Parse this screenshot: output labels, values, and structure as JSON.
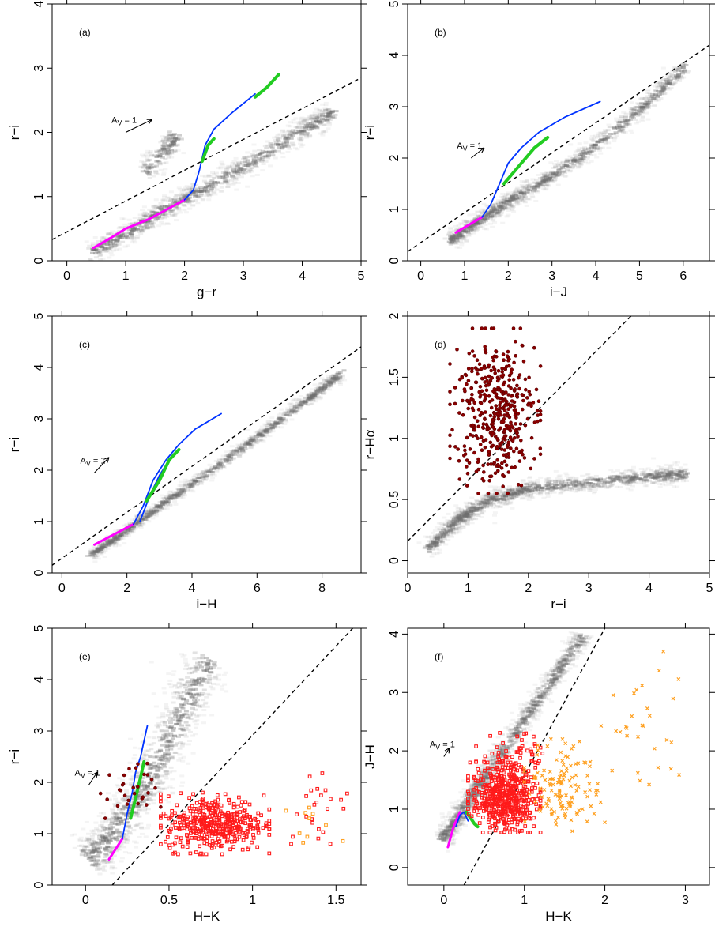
{
  "figure": {
    "panels_note": "",
    "colors": {
      "background_cloud": "#6e6e6e",
      "dashed_line": "#000000",
      "blue_track": "#0033ff",
      "green_track": "#22cc22",
      "magenta_track": "#ff00ff",
      "dark_red": "#8b0000",
      "red": "#ff1a1a",
      "orange": "#ffa020"
    }
  },
  "chart_data": [
    {
      "id": "a",
      "type": "scatter",
      "panel_label": "(a)",
      "xlabel": "g−r",
      "ylabel": "r−i",
      "xlim": [
        -0.25,
        5.0
      ],
      "ylim": [
        0,
        4
      ],
      "xticks": [
        "0",
        "1",
        "2",
        "3",
        "4",
        "5"
      ],
      "yticks": [
        "0",
        "1",
        "2",
        "3",
        "4"
      ],
      "xtick_values": [
        0,
        1,
        2,
        3,
        4,
        5
      ],
      "ytick_values": [
        0,
        1,
        2,
        3,
        4
      ],
      "reddening_label": "A_V = 1",
      "reddening_arrow": {
        "from": [
          1.0,
          2.0
        ],
        "to": [
          1.45,
          2.2
        ]
      },
      "dashed_line": {
        "x": [
          -0.25,
          5.0
        ],
        "y": [
          0.33,
          2.85
        ]
      },
      "cloud": [
        {
          "path": [
            [
              0.4,
              0.15
            ],
            [
              1.0,
              0.45
            ],
            [
              1.6,
              0.8
            ],
            [
              2.2,
              1.1
            ],
            [
              3.0,
              1.5
            ],
            [
              3.8,
              1.95
            ],
            [
              4.5,
              2.35
            ]
          ],
          "width": 0.28,
          "n": 900
        },
        {
          "path": [
            [
              1.3,
              1.4
            ],
            [
              1.6,
              1.7
            ],
            [
              1.8,
              1.95
            ]
          ],
          "width": 0.3,
          "n": 160
        }
      ],
      "tracks": [
        {
          "color": "magenta",
          "x": [
            0.45,
            0.7,
            1.0,
            1.4,
            1.8,
            2.0
          ],
          "y": [
            0.2,
            0.33,
            0.5,
            0.65,
            0.85,
            0.95
          ]
        },
        {
          "color": "blue",
          "x": [
            2.0,
            2.15,
            2.25,
            2.35,
            2.5,
            2.8,
            3.2
          ],
          "y": [
            0.95,
            1.1,
            1.4,
            1.8,
            2.05,
            2.3,
            2.6
          ]
        },
        {
          "color": "green",
          "x": [
            2.3,
            2.4,
            2.5
          ],
          "y": [
            1.55,
            1.8,
            1.9
          ]
        },
        {
          "color": "green",
          "x": [
            3.2,
            3.4,
            3.6
          ],
          "y": [
            2.55,
            2.7,
            2.9
          ]
        }
      ],
      "points": []
    },
    {
      "id": "b",
      "type": "scatter",
      "panel_label": "(b)",
      "xlabel": "i−J",
      "ylabel": "r−i",
      "xlim": [
        -0.3,
        6.6
      ],
      "ylim": [
        0,
        5
      ],
      "xticks": [
        "0",
        "1",
        "2",
        "3",
        "4",
        "5",
        "6"
      ],
      "yticks": [
        "0",
        "1",
        "2",
        "3",
        "4",
        "5"
      ],
      "xtick_values": [
        0,
        1,
        2,
        3,
        4,
        5,
        6
      ],
      "ytick_values": [
        0,
        1,
        2,
        3,
        4,
        5
      ],
      "reddening_label": "A_V = 1",
      "reddening_arrow": {
        "from": [
          1.15,
          2.0
        ],
        "to": [
          1.45,
          2.2
        ]
      },
      "dashed_line": {
        "x": [
          -0.3,
          6.6
        ],
        "y": [
          0.18,
          4.2
        ]
      },
      "cloud": [
        {
          "path": [
            [
              0.6,
              0.4
            ],
            [
              1.2,
              0.75
            ],
            [
              2.0,
              1.2
            ],
            [
              3.0,
              1.7
            ],
            [
              4.0,
              2.3
            ],
            [
              5.0,
              3.0
            ],
            [
              6.0,
              3.8
            ]
          ],
          "width": 0.28,
          "n": 1000
        }
      ],
      "tracks": [
        {
          "color": "magenta",
          "x": [
            0.8,
            1.1,
            1.4
          ],
          "y": [
            0.55,
            0.7,
            0.85
          ]
        },
        {
          "color": "blue",
          "x": [
            1.4,
            1.6,
            1.8,
            2.0,
            2.3,
            2.7,
            3.3,
            4.1
          ],
          "y": [
            0.85,
            1.1,
            1.5,
            1.9,
            2.2,
            2.5,
            2.8,
            3.1
          ]
        },
        {
          "color": "green",
          "x": [
            1.9,
            2.3,
            2.6,
            2.9
          ],
          "y": [
            1.5,
            1.9,
            2.2,
            2.4
          ]
        }
      ],
      "points": []
    },
    {
      "id": "c",
      "type": "scatter",
      "panel_label": "(c)",
      "xlabel": "i−H",
      "ylabel": "r−i",
      "xlim": [
        -0.3,
        9.2
      ],
      "ylim": [
        0,
        5
      ],
      "xticks": [
        "0",
        "2",
        "4",
        "6",
        "8"
      ],
      "yticks": [
        "0",
        "1",
        "2",
        "3",
        "4",
        "5"
      ],
      "xtick_values": [
        0,
        2,
        4,
        6,
        8
      ],
      "ytick_values": [
        0,
        1,
        2,
        3,
        4,
        5
      ],
      "reddening_label": "A_V = 1",
      "reddening_arrow": {
        "from": [
          1.0,
          1.95
        ],
        "to": [
          1.45,
          2.25
        ]
      },
      "dashed_line": {
        "x": [
          -0.3,
          9.2
        ],
        "y": [
          0.15,
          4.4
        ]
      },
      "cloud": [
        {
          "path": [
            [
              0.8,
              0.35
            ],
            [
              1.8,
              0.8
            ],
            [
              3.0,
              1.35
            ],
            [
              4.5,
              2.0
            ],
            [
              6.0,
              2.7
            ],
            [
              7.5,
              3.4
            ],
            [
              8.5,
              3.9
            ]
          ],
          "width": 0.26,
          "n": 1000
        }
      ],
      "tracks": [
        {
          "color": "magenta",
          "x": [
            1.0,
            1.6,
            2.2
          ],
          "y": [
            0.55,
            0.75,
            0.95
          ]
        },
        {
          "color": "blue",
          "x": [
            2.2,
            2.5,
            2.8,
            3.2,
            3.6,
            4.1,
            4.9
          ],
          "y": [
            0.95,
            1.3,
            1.8,
            2.2,
            2.5,
            2.8,
            3.1
          ]
        },
        {
          "color": "blue",
          "x": [
            2.4,
            2.7,
            3.0,
            3.4,
            3.6
          ],
          "y": [
            1.0,
            1.5,
            1.9,
            2.3,
            2.4
          ]
        },
        {
          "color": "green",
          "x": [
            2.6,
            3.0,
            3.3,
            3.6
          ],
          "y": [
            1.4,
            1.8,
            2.2,
            2.4
          ]
        }
      ],
      "points": []
    },
    {
      "id": "d",
      "type": "scatter",
      "panel_label": "(d)",
      "xlabel": "r−i",
      "ylabel": "r−Hα",
      "xlim": [
        0,
        5
      ],
      "ylim": [
        -0.1,
        2.0
      ],
      "xticks": [
        "0",
        "1",
        "2",
        "3",
        "4",
        "5"
      ],
      "yticks": [
        "0",
        "0.5",
        "1",
        "1.5",
        "2"
      ],
      "xtick_values": [
        0,
        1,
        2,
        3,
        4,
        5
      ],
      "ytick_values": [
        0,
        0.5,
        1,
        1.5,
        2
      ],
      "dashed_line": {
        "x": [
          0,
          3.7
        ],
        "y": [
          0.16,
          2.0
        ]
      },
      "cloud": [
        {
          "path": [
            [
              0.3,
              0.1
            ],
            [
              0.8,
              0.35
            ],
            [
              1.3,
              0.5
            ],
            [
              2.0,
              0.6
            ],
            [
              3.0,
              0.65
            ],
            [
              4.0,
              0.7
            ],
            [
              4.6,
              0.72
            ]
          ],
          "width": 0.22,
          "n": 1100
        }
      ],
      "tracks": [],
      "points": [
        {
          "color": "dark_red",
          "shape": "circle",
          "n": 420,
          "x_range": [
            0.7,
            2.2
          ],
          "y_range": [
            0.55,
            1.9
          ]
        }
      ]
    },
    {
      "id": "e",
      "type": "scatter",
      "panel_label": "(e)",
      "xlabel": "H−K",
      "ylabel": "r−i",
      "xlim": [
        -0.2,
        1.65
      ],
      "ylim": [
        0,
        5
      ],
      "xticks": [
        "0",
        "0.5",
        "1",
        "1.5"
      ],
      "yticks": [
        "0",
        "1",
        "2",
        "3",
        "4",
        "5"
      ],
      "xtick_values": [
        0,
        0.5,
        1,
        1.5
      ],
      "ytick_values": [
        0,
        1,
        2,
        3,
        4,
        5
      ],
      "reddening_label": "A_V = 1",
      "reddening_arrow": {
        "from": [
          0.02,
          1.95
        ],
        "to": [
          0.07,
          2.2
        ]
      },
      "dashed_line": {
        "x": [
          0.16,
          1.6
        ],
        "y": [
          0.0,
          5.0
        ]
      },
      "cloud": [
        {
          "path": [
            [
              0.0,
              0.5
            ],
            [
              0.15,
              1.0
            ],
            [
              0.3,
              1.7
            ],
            [
              0.45,
              2.6
            ],
            [
              0.6,
              3.6
            ],
            [
              0.72,
              4.4
            ]
          ],
          "width": 0.2,
          "n": 900
        }
      ],
      "tracks": [
        {
          "color": "magenta",
          "x": [
            0.14,
            0.18,
            0.22
          ],
          "y": [
            0.5,
            0.7,
            0.9
          ]
        },
        {
          "color": "blue",
          "x": [
            0.22,
            0.25,
            0.28,
            0.3,
            0.33,
            0.35,
            0.37
          ],
          "y": [
            0.9,
            1.4,
            1.8,
            2.2,
            2.5,
            2.8,
            3.1
          ]
        },
        {
          "color": "green",
          "x": [
            0.27,
            0.3,
            0.33,
            0.35
          ],
          "y": [
            1.3,
            1.7,
            2.1,
            2.4
          ]
        }
      ],
      "points": [
        {
          "color": "dark_red",
          "shape": "circle",
          "n": 30,
          "x_range": [
            0.05,
            0.45
          ],
          "y_range": [
            1.2,
            2.4
          ]
        },
        {
          "color": "red",
          "shape": "square",
          "n": 420,
          "x_range": [
            0.45,
            1.1
          ],
          "y_range": [
            0.6,
            1.8
          ]
        },
        {
          "color": "red",
          "shape": "square",
          "n": 25,
          "x_range": [
            1.1,
            1.6
          ],
          "y_range": [
            0.8,
            2.3
          ]
        },
        {
          "color": "orange",
          "shape": "square",
          "n": 10,
          "x_range": [
            1.2,
            1.55
          ],
          "y_range": [
            0.6,
            1.6
          ]
        }
      ]
    },
    {
      "id": "f",
      "type": "scatter",
      "panel_label": "(f)",
      "xlabel": "H−K",
      "ylabel": "J−H",
      "xlim": [
        -0.45,
        3.3
      ],
      "ylim": [
        -0.3,
        4.1
      ],
      "xticks": [
        "0",
        "1",
        "2",
        "3"
      ],
      "yticks": [
        "0",
        "1",
        "2",
        "3",
        "4"
      ],
      "xtick_values": [
        0,
        1,
        2,
        3
      ],
      "ytick_values": [
        0,
        1,
        2,
        3,
        4
      ],
      "reddening_label": "A_V = 1",
      "reddening_arrow": {
        "from": [
          0.0,
          1.9
        ],
        "to": [
          0.07,
          2.05
        ]
      },
      "dashed_line": {
        "x": [
          0.25,
          2.0
        ],
        "y": [
          -0.3,
          4.1
        ]
      },
      "cloud": [
        {
          "path": [
            [
              -0.05,
              0.5
            ],
            [
              0.2,
              1.0
            ],
            [
              0.5,
              1.6
            ],
            [
              0.9,
              2.4
            ],
            [
              1.3,
              3.2
            ],
            [
              1.7,
              4.0
            ]
          ],
          "width": 0.18,
          "n": 950
        }
      ],
      "tracks": [
        {
          "color": "magenta",
          "x": [
            0.05,
            0.12,
            0.2
          ],
          "y": [
            0.35,
            0.7,
            0.95
          ]
        },
        {
          "color": "blue",
          "x": [
            0.15,
            0.2,
            0.25,
            0.3
          ],
          "y": [
            0.7,
            0.9,
            0.95,
            0.8
          ]
        },
        {
          "color": "green",
          "x": [
            0.28,
            0.33,
            0.38,
            0.42
          ],
          "y": [
            0.95,
            0.85,
            0.75,
            0.7
          ]
        }
      ],
      "points": [
        {
          "color": "red",
          "shape": "square",
          "n": 520,
          "x_range": [
            0.3,
            1.2
          ],
          "y_range": [
            0.6,
            1.8
          ]
        },
        {
          "color": "red",
          "shape": "square",
          "n": 60,
          "x_range": [
            0.4,
            1.3
          ],
          "y_range": [
            1.5,
            2.4
          ]
        },
        {
          "color": "orange",
          "shape": "cross",
          "n": 130,
          "x_range": [
            1.0,
            2.0
          ],
          "y_range": [
            0.6,
            2.2
          ]
        },
        {
          "color": "orange",
          "shape": "cross",
          "n": 30,
          "x_range": [
            1.8,
            3.0
          ],
          "y_range": [
            1.0,
            3.8
          ]
        }
      ]
    }
  ]
}
